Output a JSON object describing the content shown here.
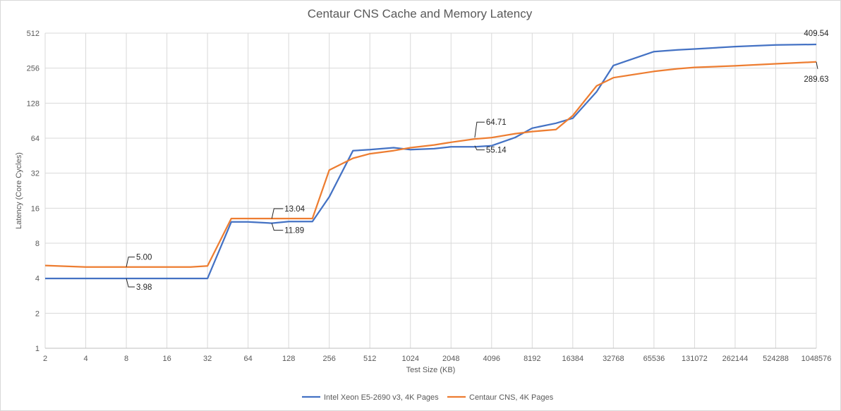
{
  "chart_data": {
    "type": "line",
    "title": "Centaur CNS Cache and Memory Latency",
    "xlabel": "Test Size (KB)",
    "ylabel": "Latency (Core Cycles)",
    "x_scale": "log2",
    "y_scale": "log2",
    "x_ticks": [
      2,
      4,
      8,
      16,
      32,
      64,
      128,
      256,
      512,
      1024,
      2048,
      4096,
      8192,
      16384,
      32768,
      65536,
      131072,
      262144,
      524288,
      1048576
    ],
    "y_ticks": [
      1,
      2,
      4,
      8,
      16,
      32,
      64,
      128,
      256,
      512
    ],
    "xlim": [
      2,
      1048576
    ],
    "ylim": [
      1,
      512
    ],
    "grid": true,
    "legend_position": "bottom",
    "series": [
      {
        "name": "Intel Xeon E5-2690 v3, 4K Pages",
        "color": "#4472c4",
        "x": [
          2,
          4,
          8,
          16,
          24,
          32,
          48,
          64,
          96,
          128,
          192,
          256,
          384,
          512,
          768,
          1024,
          1536,
          2048,
          3072,
          4096,
          6144,
          8192,
          12288,
          16384,
          24576,
          32768,
          65536,
          98304,
          131072,
          262144,
          524288,
          1048576
        ],
        "y": [
          3.98,
          3.98,
          3.98,
          3.98,
          3.98,
          3.98,
          12.2,
          12.2,
          11.89,
          12.3,
          12.3,
          20,
          50,
          51,
          53,
          51,
          52,
          54,
          54,
          55.14,
          65,
          78,
          86,
          95,
          160,
          270,
          355,
          368,
          374,
          392,
          405,
          409.54
        ]
      },
      {
        "name": "Centaur CNS, 4K Pages",
        "color": "#ed7d31",
        "x": [
          2,
          4,
          8,
          16,
          24,
          32,
          48,
          64,
          96,
          128,
          192,
          256,
          384,
          512,
          768,
          1024,
          1536,
          2048,
          3072,
          4096,
          6144,
          8192,
          12288,
          16384,
          24576,
          32768,
          65536,
          98304,
          131072,
          262144,
          524288,
          1048576
        ],
        "y": [
          5.15,
          5.0,
          5.0,
          5.0,
          5.0,
          5.1,
          13.04,
          13.04,
          13.04,
          13.04,
          13.04,
          34,
          43,
          47,
          50,
          53,
          56,
          59,
          63,
          64.71,
          70,
          73,
          76,
          100,
          180,
          212,
          240,
          253,
          260,
          268,
          279,
          289.63
        ]
      }
    ],
    "annotations": [
      {
        "text": "5.00",
        "series": "Centaur CNS, 4K Pages",
        "x": 8,
        "y": 5.0
      },
      {
        "text": "3.98",
        "series": "Intel Xeon E5-2690 v3, 4K Pages",
        "x": 8,
        "y": 3.98
      },
      {
        "text": "13.04",
        "series": "Centaur CNS, 4K Pages",
        "x": 96,
        "y": 13.04
      },
      {
        "text": "11.89",
        "series": "Intel Xeon E5-2690 v3, 4K Pages",
        "x": 96,
        "y": 11.89
      },
      {
        "text": "64.71",
        "series": "Centaur CNS, 4K Pages",
        "x": 3072,
        "y": 64.71
      },
      {
        "text": "55.14",
        "series": "Intel Xeon E5-2690 v3, 4K Pages",
        "x": 3072,
        "y": 55.14
      },
      {
        "text": "409.54",
        "series": "Intel Xeon E5-2690 v3, 4K Pages",
        "x": 1048576,
        "y": 409.54
      },
      {
        "text": "289.63",
        "series": "Centaur CNS, 4K Pages",
        "x": 1048576,
        "y": 289.63
      }
    ]
  }
}
